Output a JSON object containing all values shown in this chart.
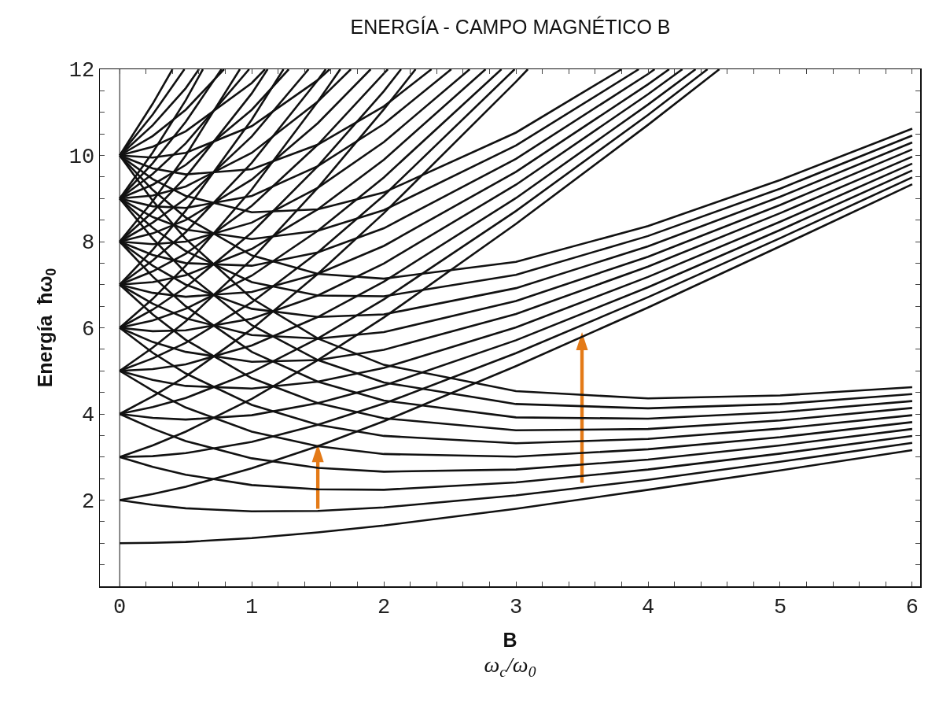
{
  "chart_data": {
    "type": "line",
    "title": "ENERGÍA - CAMPO MAGNÉTICO B",
    "xlabel": "B\nω$_{c}$/ω$_{0}$",
    "ylabel": "Energía  ħω$_{0}$",
    "color": "#111111",
    "x": [
      0,
      0.25,
      0.5,
      1,
      1.5,
      2,
      3,
      4,
      5,
      6
    ],
    "xlim": [
      -0.15,
      6.06
    ],
    "ylim": [
      0,
      12
    ],
    "xticks": [
      0,
      {
        "value": 0.2,
        "label": null
      },
      {
        "value": 0.4,
        "label": null
      },
      {
        "value": 0.6,
        "label": null
      },
      {
        "value": 0.8,
        "label": null
      },
      1,
      {
        "value": 1.2,
        "label": null
      },
      {
        "value": 1.4,
        "label": null
      },
      {
        "value": 1.6,
        "label": null
      },
      {
        "value": 1.8,
        "label": null
      },
      2,
      {
        "value": 2.2,
        "label": null
      },
      {
        "value": 2.4,
        "label": null
      },
      {
        "value": 2.6,
        "label": null
      },
      {
        "value": 2.8,
        "label": null
      },
      3,
      {
        "value": 3.2,
        "label": null
      },
      {
        "value": 3.4,
        "label": null
      },
      {
        "value": 3.6,
        "label": null
      },
      {
        "value": 3.8,
        "label": null
      },
      4,
      {
        "value": 4.2,
        "label": null
      },
      {
        "value": 4.4,
        "label": null
      },
      {
        "value": 4.6,
        "label": null
      },
      {
        "value": 4.8,
        "label": null
      },
      5,
      {
        "value": 5.2,
        "label": null
      },
      {
        "value": 5.4,
        "label": null
      },
      {
        "value": 5.6,
        "label": null
      },
      {
        "value": 5.8,
        "label": null
      },
      6
    ],
    "yticks": [
      {
        "value": 0.5,
        "label": null
      },
      {
        "value": 1,
        "label": null
      },
      {
        "value": 1.5,
        "label": null
      },
      2,
      {
        "value": 2.5,
        "label": null
      },
      {
        "value": 3,
        "label": null
      },
      {
        "value": 3.5,
        "label": null
      },
      4,
      {
        "value": 4.5,
        "label": null
      },
      {
        "value": 5,
        "label": null
      },
      {
        "value": 5.5,
        "label": null
      },
      6,
      {
        "value": 6.5,
        "label": null
      },
      {
        "value": 7,
        "label": null
      },
      {
        "value": 7.5,
        "label": null
      },
      8,
      {
        "value": 8.5,
        "label": null
      },
      {
        "value": 9,
        "label": null
      },
      {
        "value": 9.5,
        "label": null
      },
      10,
      {
        "value": 10.5,
        "label": null
      },
      {
        "value": 11,
        "label": null
      },
      {
        "value": 11.5,
        "label": null
      },
      12
    ],
    "ref_lines": [
      {
        "axis": "x",
        "value": 0,
        "color": "#111111"
      }
    ],
    "series": [
      {
        "values": [
          1,
          1.01,
          1.03,
          1.12,
          1.25,
          1.41,
          1.8,
          2.24,
          2.69,
          3.16
        ]
      },
      {
        "values": [
          2,
          1.89,
          1.81,
          1.74,
          1.75,
          1.83,
          2.11,
          2.47,
          2.89,
          3.33
        ]
      },
      {
        "values": [
          2,
          2.14,
          2.31,
          2.74,
          3.25,
          3.83,
          5.11,
          6.47,
          7.89,
          9.33
        ]
      },
      {
        "values": [
          3,
          2.77,
          2.59,
          2.35,
          2.25,
          2.24,
          2.41,
          2.71,
          3.08,
          3.49
        ]
      },
      {
        "values": [
          3,
          3.02,
          3.09,
          3.35,
          3.75,
          4.24,
          5.41,
          6.71,
          8.08,
          9.49
        ]
      },
      {
        "x": [
          0,
          0.25,
          0.5,
          1,
          1.5,
          2,
          3,
          4,
          4.54
        ],
        "values": [
          3,
          3.27,
          3.59,
          4.35,
          5.25,
          6.24,
          8.41,
          10.71,
          12
        ]
      },
      {
        "values": [
          4,
          3.66,
          3.37,
          2.97,
          2.75,
          2.66,
          2.71,
          2.94,
          3.27,
          3.65
        ]
      },
      {
        "values": [
          4,
          3.91,
          3.87,
          3.97,
          4.25,
          4.66,
          5.71,
          6.94,
          8.27,
          9.65
        ]
      },
      {
        "x": [
          0,
          0.25,
          0.5,
          1,
          1.5,
          2,
          3,
          4,
          4.45
        ],
        "values": [
          4,
          4.16,
          4.37,
          4.97,
          5.75,
          6.66,
          8.71,
          10.94,
          12
        ]
      },
      {
        "x": [
          0,
          0.25,
          0.5,
          1,
          1.5,
          2,
          3,
          3.09
        ],
        "values": [
          4,
          4.41,
          4.87,
          5.97,
          7.25,
          8.66,
          11.71,
          12
        ]
      },
      {
        "values": [
          5,
          4.54,
          4.15,
          3.59,
          3.25,
          3.07,
          3.01,
          3.18,
          3.46,
          3.81
        ]
      },
      {
        "values": [
          5,
          4.79,
          4.65,
          4.59,
          4.75,
          5.07,
          6.01,
          7.18,
          8.46,
          9.81
        ]
      },
      {
        "x": [
          0,
          0.25,
          0.5,
          1,
          1.5,
          2,
          3,
          4,
          4.36
        ],
        "values": [
          5,
          5.04,
          5.15,
          5.59,
          6.25,
          7.07,
          9.01,
          11.18,
          12
        ]
      },
      {
        "x": [
          0,
          0.25,
          0.5,
          1,
          1.5,
          2,
          2.99
        ],
        "values": [
          5,
          5.29,
          5.65,
          6.59,
          7.75,
          9.07,
          12
        ]
      },
      {
        "x": [
          0,
          0.25,
          0.5,
          1,
          1.5,
          2,
          2.24
        ],
        "values": [
          5,
          5.54,
          6.15,
          7.59,
          9.25,
          11.07,
          12
        ]
      },
      {
        "values": [
          6,
          5.42,
          4.94,
          4.21,
          3.75,
          3.49,
          3.32,
          3.42,
          3.66,
          3.97
        ]
      },
      {
        "values": [
          6,
          5.67,
          5.44,
          5.21,
          5.25,
          5.49,
          6.32,
          7.42,
          8.66,
          9.97
        ]
      },
      {
        "x": [
          0,
          0.25,
          0.5,
          1,
          1.5,
          2,
          3,
          4,
          4.26
        ],
        "values": [
          6,
          5.92,
          5.94,
          6.21,
          6.75,
          7.49,
          9.32,
          11.42,
          12
        ]
      },
      {
        "x": [
          0,
          0.25,
          0.5,
          1,
          1.5,
          2,
          2.89
        ],
        "values": [
          6,
          6.17,
          6.44,
          7.21,
          8.25,
          9.49,
          12
        ]
      },
      {
        "x": [
          0,
          0.25,
          0.5,
          1,
          1.5,
          2,
          2.13
        ],
        "values": [
          6,
          6.42,
          6.94,
          8.21,
          9.75,
          11.49,
          12
        ]
      },
      {
        "x": [
          0,
          0.25,
          0.5,
          1,
          1.5,
          1.67
        ],
        "values": [
          6,
          6.67,
          7.44,
          9.21,
          11.25,
          12
        ]
      },
      {
        "values": [
          7,
          6.31,
          5.72,
          4.83,
          4.25,
          3.9,
          3.62,
          3.65,
          3.85,
          4.14
        ]
      },
      {
        "values": [
          7,
          6.56,
          6.22,
          5.83,
          5.75,
          5.9,
          6.62,
          7.65,
          8.85,
          10.14
        ]
      },
      {
        "x": [
          0,
          0.25,
          0.5,
          1,
          1.5,
          2,
          3,
          4,
          4.16
        ],
        "values": [
          7,
          6.81,
          6.72,
          6.83,
          7.25,
          7.9,
          9.62,
          11.65,
          12
        ]
      },
      {
        "x": [
          0,
          0.25,
          0.5,
          1,
          1.5,
          2,
          2.77
        ],
        "values": [
          7,
          7.06,
          7.22,
          7.83,
          8.75,
          9.9,
          12
        ]
      },
      {
        "x": [
          0,
          0.25,
          0.5,
          1,
          1.5,
          2,
          2.03
        ],
        "values": [
          7,
          7.31,
          7.72,
          8.83,
          10.25,
          11.9,
          12
        ]
      },
      {
        "x": [
          0,
          0.25,
          0.5,
          1,
          1.5,
          1.56
        ],
        "values": [
          7,
          7.56,
          8.22,
          9.83,
          11.75,
          12
        ]
      },
      {
        "x": [
          0,
          0.25,
          0.5,
          1,
          1.24
        ],
        "values": [
          7,
          7.81,
          8.72,
          10.83,
          12
        ]
      },
      {
        "values": [
          8,
          7.19,
          6.5,
          5.44,
          4.75,
          4.31,
          3.92,
          3.89,
          4.04,
          4.3
        ]
      },
      {
        "values": [
          8,
          7.44,
          7,
          6.44,
          6.25,
          6.31,
          6.92,
          7.89,
          9.04,
          10.3
        ]
      },
      {
        "x": [
          0,
          0.25,
          0.5,
          1,
          1.5,
          2,
          3,
          4,
          4.05
        ],
        "values": [
          8,
          7.69,
          7.5,
          7.44,
          7.75,
          8.31,
          9.92,
          11.89,
          12
        ]
      },
      {
        "x": [
          0,
          0.25,
          0.5,
          1,
          1.5,
          2,
          2.65
        ],
        "values": [
          8,
          7.94,
          8,
          8.44,
          9.25,
          10.31,
          12
        ]
      },
      {
        "x": [
          0,
          0.25,
          0.5,
          1,
          1.5,
          1.9
        ],
        "values": [
          8,
          8.19,
          8.5,
          9.44,
          10.75,
          12
        ]
      },
      {
        "x": [
          0,
          0.25,
          0.5,
          1,
          1.43
        ],
        "values": [
          8,
          8.44,
          9,
          10.44,
          12
        ]
      },
      {
        "x": [
          0,
          0.25,
          0.5,
          1,
          1.12
        ],
        "values": [
          8,
          8.69,
          9.5,
          11.44,
          12
        ]
      },
      {
        "x": [
          0,
          0.25,
          0.5,
          0.91
        ],
        "values": [
          8,
          8.94,
          10,
          12
        ]
      },
      {
        "values": [
          9,
          8.07,
          7.28,
          6.06,
          5.25,
          4.73,
          4.23,
          4.13,
          4.23,
          4.46
        ]
      },
      {
        "values": [
          9,
          8.32,
          7.78,
          7.06,
          6.75,
          6.73,
          7.23,
          8.13,
          9.23,
          10.46
        ]
      },
      {
        "x": [
          0,
          0.25,
          0.5,
          1,
          1.5,
          2,
          3,
          3.93
        ],
        "values": [
          9,
          8.57,
          8.28,
          8.06,
          8.25,
          8.73,
          10.23,
          12
        ]
      },
      {
        "x": [
          0,
          0.25,
          0.5,
          1,
          1.5,
          2,
          2.51
        ],
        "values": [
          9,
          8.82,
          8.78,
          9.06,
          9.75,
          10.73,
          12
        ]
      },
      {
        "x": [
          0,
          0.25,
          0.5,
          1,
          1.5,
          1.75
        ],
        "values": [
          9,
          9.07,
          9.28,
          10.06,
          11.25,
          12
        ]
      },
      {
        "x": [
          0,
          0.25,
          0.5,
          1,
          1.28
        ],
        "values": [
          9,
          9.32,
          9.78,
          11.06,
          12
        ]
      },
      {
        "x": [
          0,
          0.25,
          0.5,
          0.98
        ],
        "values": [
          9,
          9.57,
          10.28,
          12
        ]
      },
      {
        "x": [
          0,
          0.25,
          0.5,
          0.77
        ],
        "values": [
          9,
          9.82,
          10.78,
          12
        ]
      },
      {
        "x": [
          0,
          0.25,
          0.5,
          0.63
        ],
        "values": [
          9,
          10.07,
          11.28,
          12
        ]
      },
      {
        "values": [
          10,
          8.95,
          8.06,
          6.68,
          5.75,
          5.14,
          4.53,
          4.36,
          4.43,
          4.62
        ]
      },
      {
        "values": [
          10,
          9.2,
          8.56,
          7.68,
          7.25,
          7.14,
          7.53,
          8.36,
          9.43,
          10.62
        ]
      },
      {
        "x": [
          0,
          0.25,
          0.5,
          1,
          1.5,
          2,
          3,
          3.8
        ],
        "values": [
          10,
          9.45,
          9.06,
          8.68,
          8.75,
          9.14,
          10.53,
          12
        ]
      },
      {
        "x": [
          0,
          0.25,
          0.5,
          1,
          1.5,
          2,
          2.36
        ],
        "values": [
          10,
          9.7,
          9.56,
          9.68,
          10.25,
          11.14,
          12
        ]
      },
      {
        "x": [
          0,
          0.25,
          0.5,
          1,
          1.5,
          1.59
        ],
        "values": [
          10,
          9.95,
          10.06,
          10.68,
          11.75,
          12
        ]
      },
      {
        "x": [
          0,
          0.25,
          0.5,
          1,
          1.1
        ],
        "values": [
          10,
          10.2,
          10.56,
          11.68,
          12
        ]
      },
      {
        "x": [
          0,
          0.25,
          0.5,
          0.79
        ],
        "values": [
          10,
          10.45,
          11.06,
          12
        ]
      },
      {
        "x": [
          0,
          0.25,
          0.5,
          0.6
        ],
        "values": [
          10,
          10.7,
          11.56,
          12
        ]
      },
      {
        "x": [
          0,
          0.25,
          0.49
        ],
        "values": [
          10,
          10.95,
          12
        ]
      },
      {
        "x": [
          0,
          0.25,
          0.4
        ],
        "values": [
          10,
          11.2,
          12
        ]
      }
    ]
  }
}
